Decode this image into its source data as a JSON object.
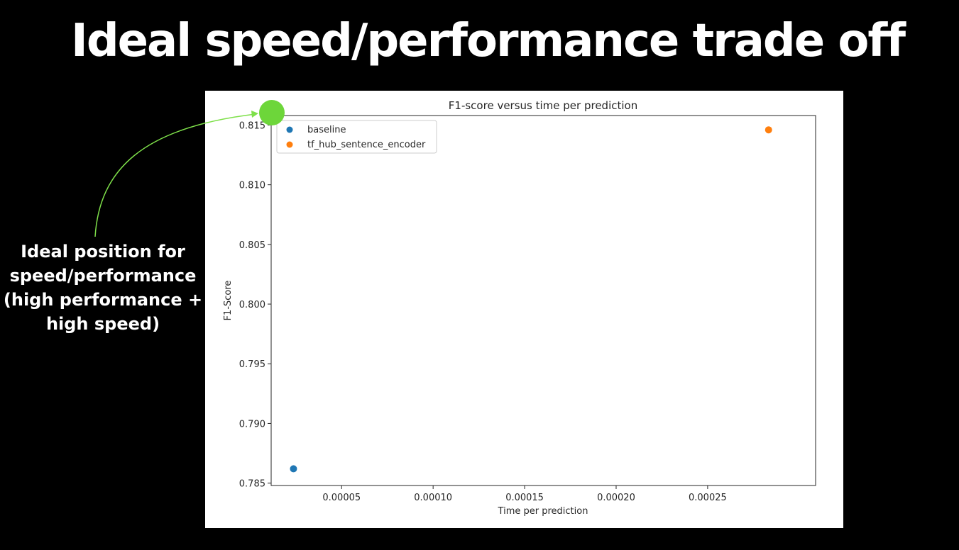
{
  "slide": {
    "title": "Ideal speed/performance trade off",
    "annotation_lines": [
      "Ideal position for",
      "speed/performance",
      "(high performance +",
      "high speed)"
    ],
    "annotation_color": "#7ee04a",
    "ideal_marker_color": "#6dd63a"
  },
  "chart_data": {
    "type": "scatter",
    "title": "F1-score versus time per prediction",
    "xlabel": "Time per prediction",
    "ylabel": "F1-Score",
    "xlim": [
      1.15e-05,
      0.000309
    ],
    "ylim": [
      0.7848,
      0.8158
    ],
    "xticks": [
      5e-05,
      0.0001,
      0.00015,
      0.0002,
      0.00025
    ],
    "xtick_labels": [
      "0.00005",
      "0.00010",
      "0.00015",
      "0.00020",
      "0.00025"
    ],
    "yticks": [
      0.785,
      0.79,
      0.795,
      0.8,
      0.805,
      0.81,
      0.815
    ],
    "ytick_labels": [
      "0.785",
      "0.790",
      "0.795",
      "0.800",
      "0.805",
      "0.810",
      "0.815"
    ],
    "grid": false,
    "legend_position": "top-left",
    "series": [
      {
        "name": "baseline",
        "color": "#1f77b4",
        "points": [
          {
            "x": 2.37e-05,
            "y": 0.7862
          }
        ]
      },
      {
        "name": "tf_hub_sentence_encoder",
        "color": "#ff7f0e",
        "points": [
          {
            "x": 0.0002833,
            "y": 0.8146
          }
        ]
      }
    ]
  }
}
